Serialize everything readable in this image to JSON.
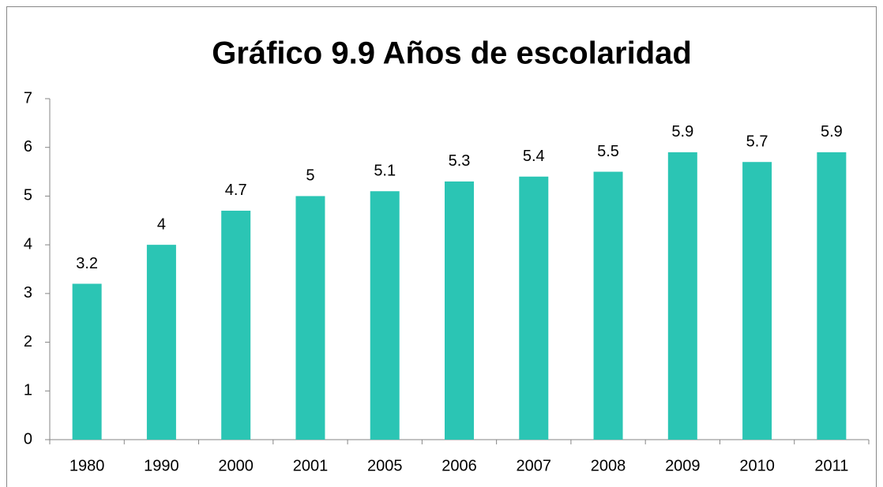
{
  "chart_data": {
    "type": "bar",
    "title": "Gráfico 9.9 Años de escolaridad",
    "categories": [
      "1980",
      "1990",
      "2000",
      "2001",
      "2005",
      "2006",
      "2007",
      "2008",
      "2009",
      "2010",
      "2011"
    ],
    "values": [
      3.2,
      4,
      4.7,
      5,
      5.1,
      5.3,
      5.4,
      5.5,
      5.9,
      5.7,
      5.9
    ],
    "color": "#2bc5b4",
    "ylim": [
      0,
      7
    ],
    "yticks": [
      0,
      1,
      2,
      3,
      4,
      5,
      6,
      7
    ],
    "grid": false
  }
}
